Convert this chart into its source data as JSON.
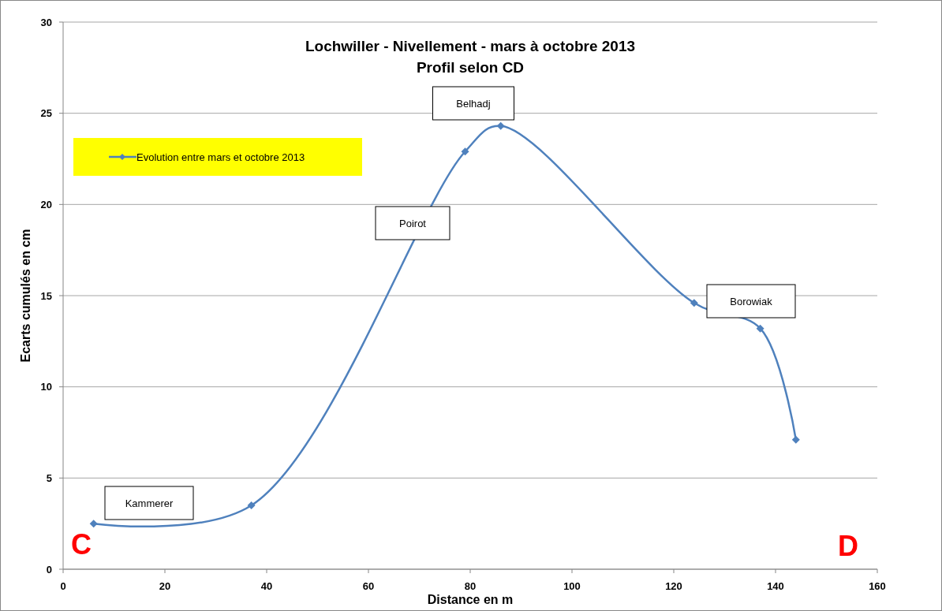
{
  "chart_data": {
    "type": "line",
    "title": "Lochwiller - Nivellement - mars à octobre 2013",
    "subtitle": "Profil selon CD",
    "xlabel": "Distance en m",
    "ylabel": "Ecarts cumulés en cm",
    "x": [
      6,
      37,
      79,
      86,
      124,
      137,
      144
    ],
    "series": [
      {
        "name": "Evolution entre mars et octobre 2013",
        "color": "#4f81bd",
        "values": [
          2.5,
          3.5,
          22.9,
          24.3,
          14.6,
          13.2,
          7.1
        ]
      }
    ],
    "xlim": [
      0,
      160
    ],
    "xticks": [
      0,
      20,
      40,
      60,
      80,
      100,
      120,
      140,
      160
    ],
    "ylim": [
      0,
      30
    ],
    "yticks": [
      0,
      5,
      10,
      15,
      20,
      25,
      30
    ],
    "grid": "y",
    "legend": "top left",
    "marker": "diamond",
    "line_style": "solid",
    "annotations": [
      "Kammerer",
      "Poirot",
      "Belhadj",
      "Borowiak",
      "C",
      "D"
    ]
  }
}
